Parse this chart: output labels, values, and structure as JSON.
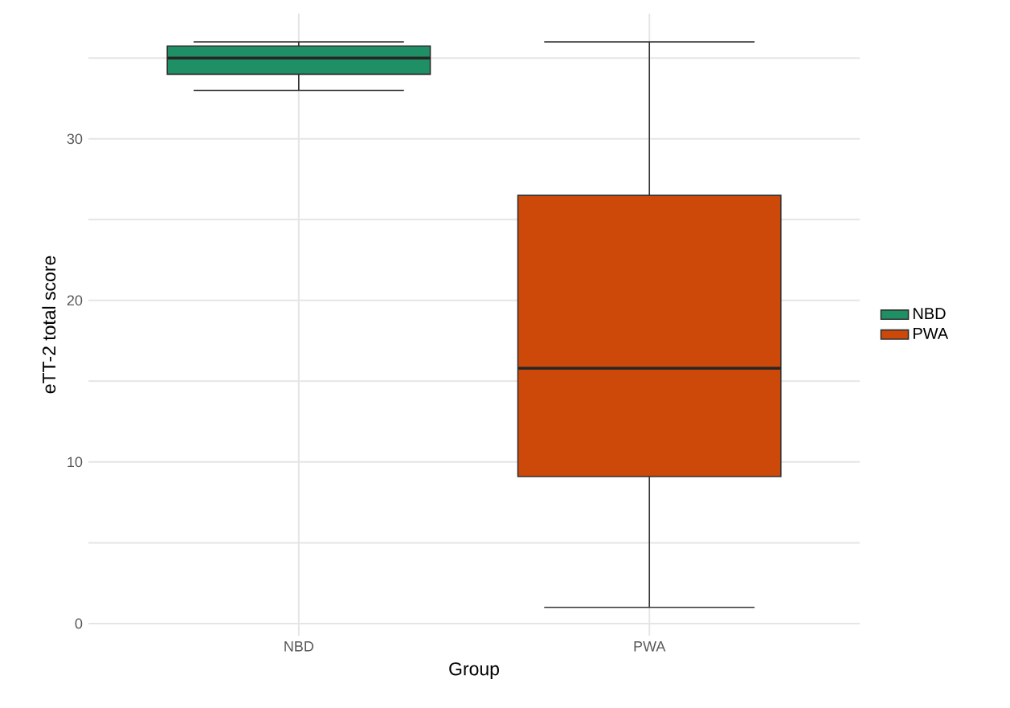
{
  "chart_data": {
    "type": "box",
    "xlabel": "Group",
    "ylabel": "eTT-2 total score",
    "categories": [
      "NBD",
      "PWA"
    ],
    "series": [
      {
        "name": "NBD",
        "color": "#1f9066",
        "boxes": [
          {
            "low": 33,
            "q1": 34,
            "median": 35,
            "q3": 35.75,
            "high": 36
          },
          null
        ]
      },
      {
        "name": "PWA",
        "color": "#cc490a",
        "boxes": [
          null,
          {
            "low": 1,
            "q1": 9.1,
            "median": 15.8,
            "q3": 26.5,
            "high": 36
          }
        ]
      }
    ],
    "ylim": [
      -0.75,
      37.75
    ],
    "yticks": [
      0,
      {
        "value": 5,
        "label": null
      },
      10,
      {
        "value": 15,
        "label": null
      },
      20,
      {
        "value": 25,
        "label": null
      },
      30,
      {
        "value": 35,
        "label": null
      }
    ],
    "grid": true,
    "legend": "right"
  }
}
